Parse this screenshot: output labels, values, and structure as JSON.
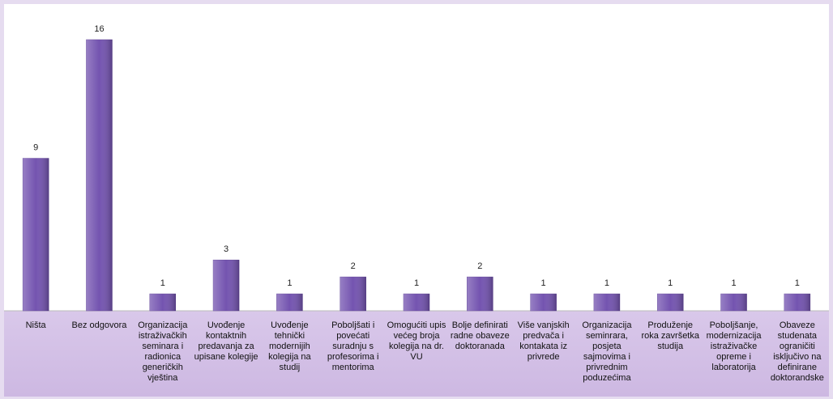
{
  "chart_data": {
    "type": "bar",
    "categories": [
      "Ništa",
      "Bez odgovora",
      "Organizacija istraživačkih seminara i radionica generičkih vještina",
      "Uvođenje kontaktnih predavanja za upisane kolegije",
      "Uvođenje tehnički modernijih kolegija na studij",
      "Poboljšati i povećati suradnju s profesorima i mentorima",
      "Omogućiti upis većeg broja kolegija na dr. VU",
      "Bolje definirati radne obaveze doktoranada",
      "Više vanjskih predvača i kontakata iz privrede",
      "Organizacija seminrara, posjeta sajmovima i privrednim poduzećima",
      "Produženje roka završetka studija",
      "Poboljšanje, modernizacija istraživačke opreme i laboratorija",
      "Obaveze studenata ograničiti isključivo na definirane doktorandske"
    ],
    "values": [
      9,
      16,
      1,
      3,
      1,
      2,
      1,
      2,
      1,
      1,
      1,
      1,
      1
    ],
    "color": "#7454b0"
  }
}
